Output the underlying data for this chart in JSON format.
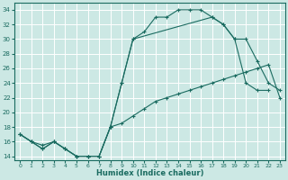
{
  "xlabel": "Humidex (Indice chaleur)",
  "bg_color": "#cce8e4",
  "grid_color": "#ffffff",
  "line_color": "#1a6b60",
  "xlim": [
    -0.5,
    23.5
  ],
  "ylim": [
    13.5,
    35
  ],
  "xticks": [
    0,
    1,
    2,
    3,
    4,
    5,
    6,
    7,
    8,
    9,
    10,
    11,
    12,
    13,
    14,
    15,
    16,
    17,
    18,
    19,
    20,
    21,
    22,
    23
  ],
  "yticks": [
    14,
    16,
    18,
    20,
    22,
    24,
    26,
    28,
    30,
    32,
    34
  ],
  "line1_x": [
    0,
    1,
    2,
    3,
    4,
    5,
    6,
    7,
    8,
    9,
    10,
    11,
    12,
    13,
    14,
    15,
    16,
    17,
    18,
    19,
    20,
    21,
    22
  ],
  "line1_y": [
    17,
    16,
    15,
    16,
    15,
    14,
    14,
    14,
    18,
    24,
    30,
    31,
    33,
    33,
    34,
    34,
    34,
    33,
    32,
    30,
    24,
    23,
    23
  ],
  "line2_x": [
    0,
    1,
    2,
    3,
    4,
    5,
    6,
    7,
    8,
    9,
    10,
    11,
    12,
    13,
    14,
    15,
    16,
    17,
    18,
    19,
    20,
    21,
    22,
    23
  ],
  "line2_y": [
    17,
    16,
    15.5,
    16,
    15,
    14,
    14,
    14,
    18,
    18.5,
    19.5,
    20.5,
    21.5,
    22,
    22.5,
    23,
    23.5,
    24,
    24.5,
    25,
    25.5,
    26,
    26.5,
    22
  ],
  "line3_x": [
    0,
    1,
    2,
    3,
    4,
    5,
    6,
    7,
    8,
    9,
    10,
    17,
    18,
    19,
    20,
    21,
    22,
    23
  ],
  "line3_y": [
    17,
    16,
    15,
    16,
    15,
    14,
    14,
    14,
    18,
    24,
    30,
    33,
    32,
    30,
    30,
    27,
    24,
    23
  ]
}
